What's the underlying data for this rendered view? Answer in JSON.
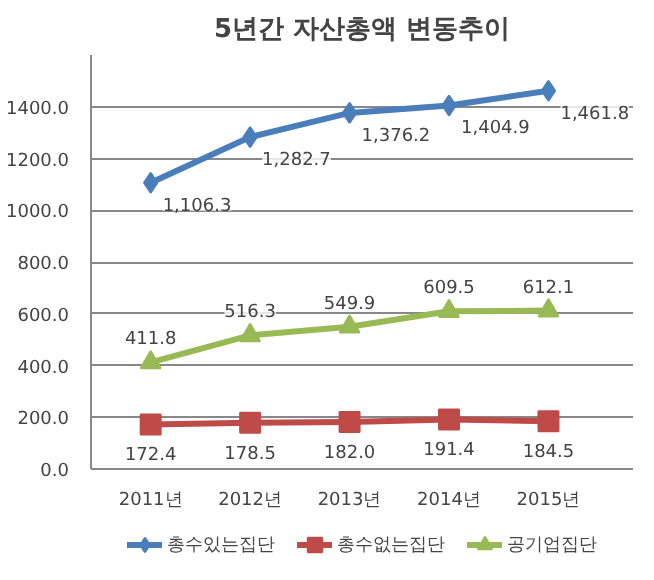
{
  "chart_data": {
    "type": "line",
    "title": "5년간 자산총액 변동추이",
    "categories": [
      "2011년",
      "2012년",
      "2013년",
      "2014년",
      "2015년"
    ],
    "ylim": [
      0,
      1600
    ],
    "yticks": [
      {
        "value": 0,
        "label": "0.0"
      },
      {
        "value": 200,
        "label": "200.0"
      },
      {
        "value": 400,
        "label": "400.0"
      },
      {
        "value": 600,
        "label": "600.0"
      },
      {
        "value": 800,
        "label": "800.0"
      },
      {
        "value": 1000,
        "label": "1000.0"
      },
      {
        "value": 1200,
        "label": "1200.0"
      },
      {
        "value": 1400,
        "label": "1400.0"
      }
    ],
    "grid": "y",
    "legend": "bottom",
    "line_style": "solid",
    "series": [
      {
        "name": "총수있는집단",
        "color": "#4a7ebb",
        "marker": "diamond",
        "values": [
          1106.3,
          1282.7,
          1376.2,
          1404.9,
          1461.8
        ],
        "value_labels": [
          "1,106.3",
          "1,282.7",
          "1,376.2",
          "1,404.9",
          "1,461.8"
        ]
      },
      {
        "name": "총수없는집단",
        "color": "#be4b48",
        "marker": "square",
        "values": [
          172.4,
          178.5,
          182.0,
          191.4,
          184.5
        ],
        "value_labels": [
          "172.4",
          "178.5",
          "182.0",
          "191.4",
          "184.5"
        ]
      },
      {
        "name": "공기업집단",
        "color": "#98b954",
        "marker": "triangle",
        "values": [
          411.8,
          516.3,
          549.9,
          609.5,
          612.1
        ],
        "value_labels": [
          "411.8",
          "516.3",
          "549.9",
          "609.5",
          "612.1"
        ]
      }
    ]
  }
}
